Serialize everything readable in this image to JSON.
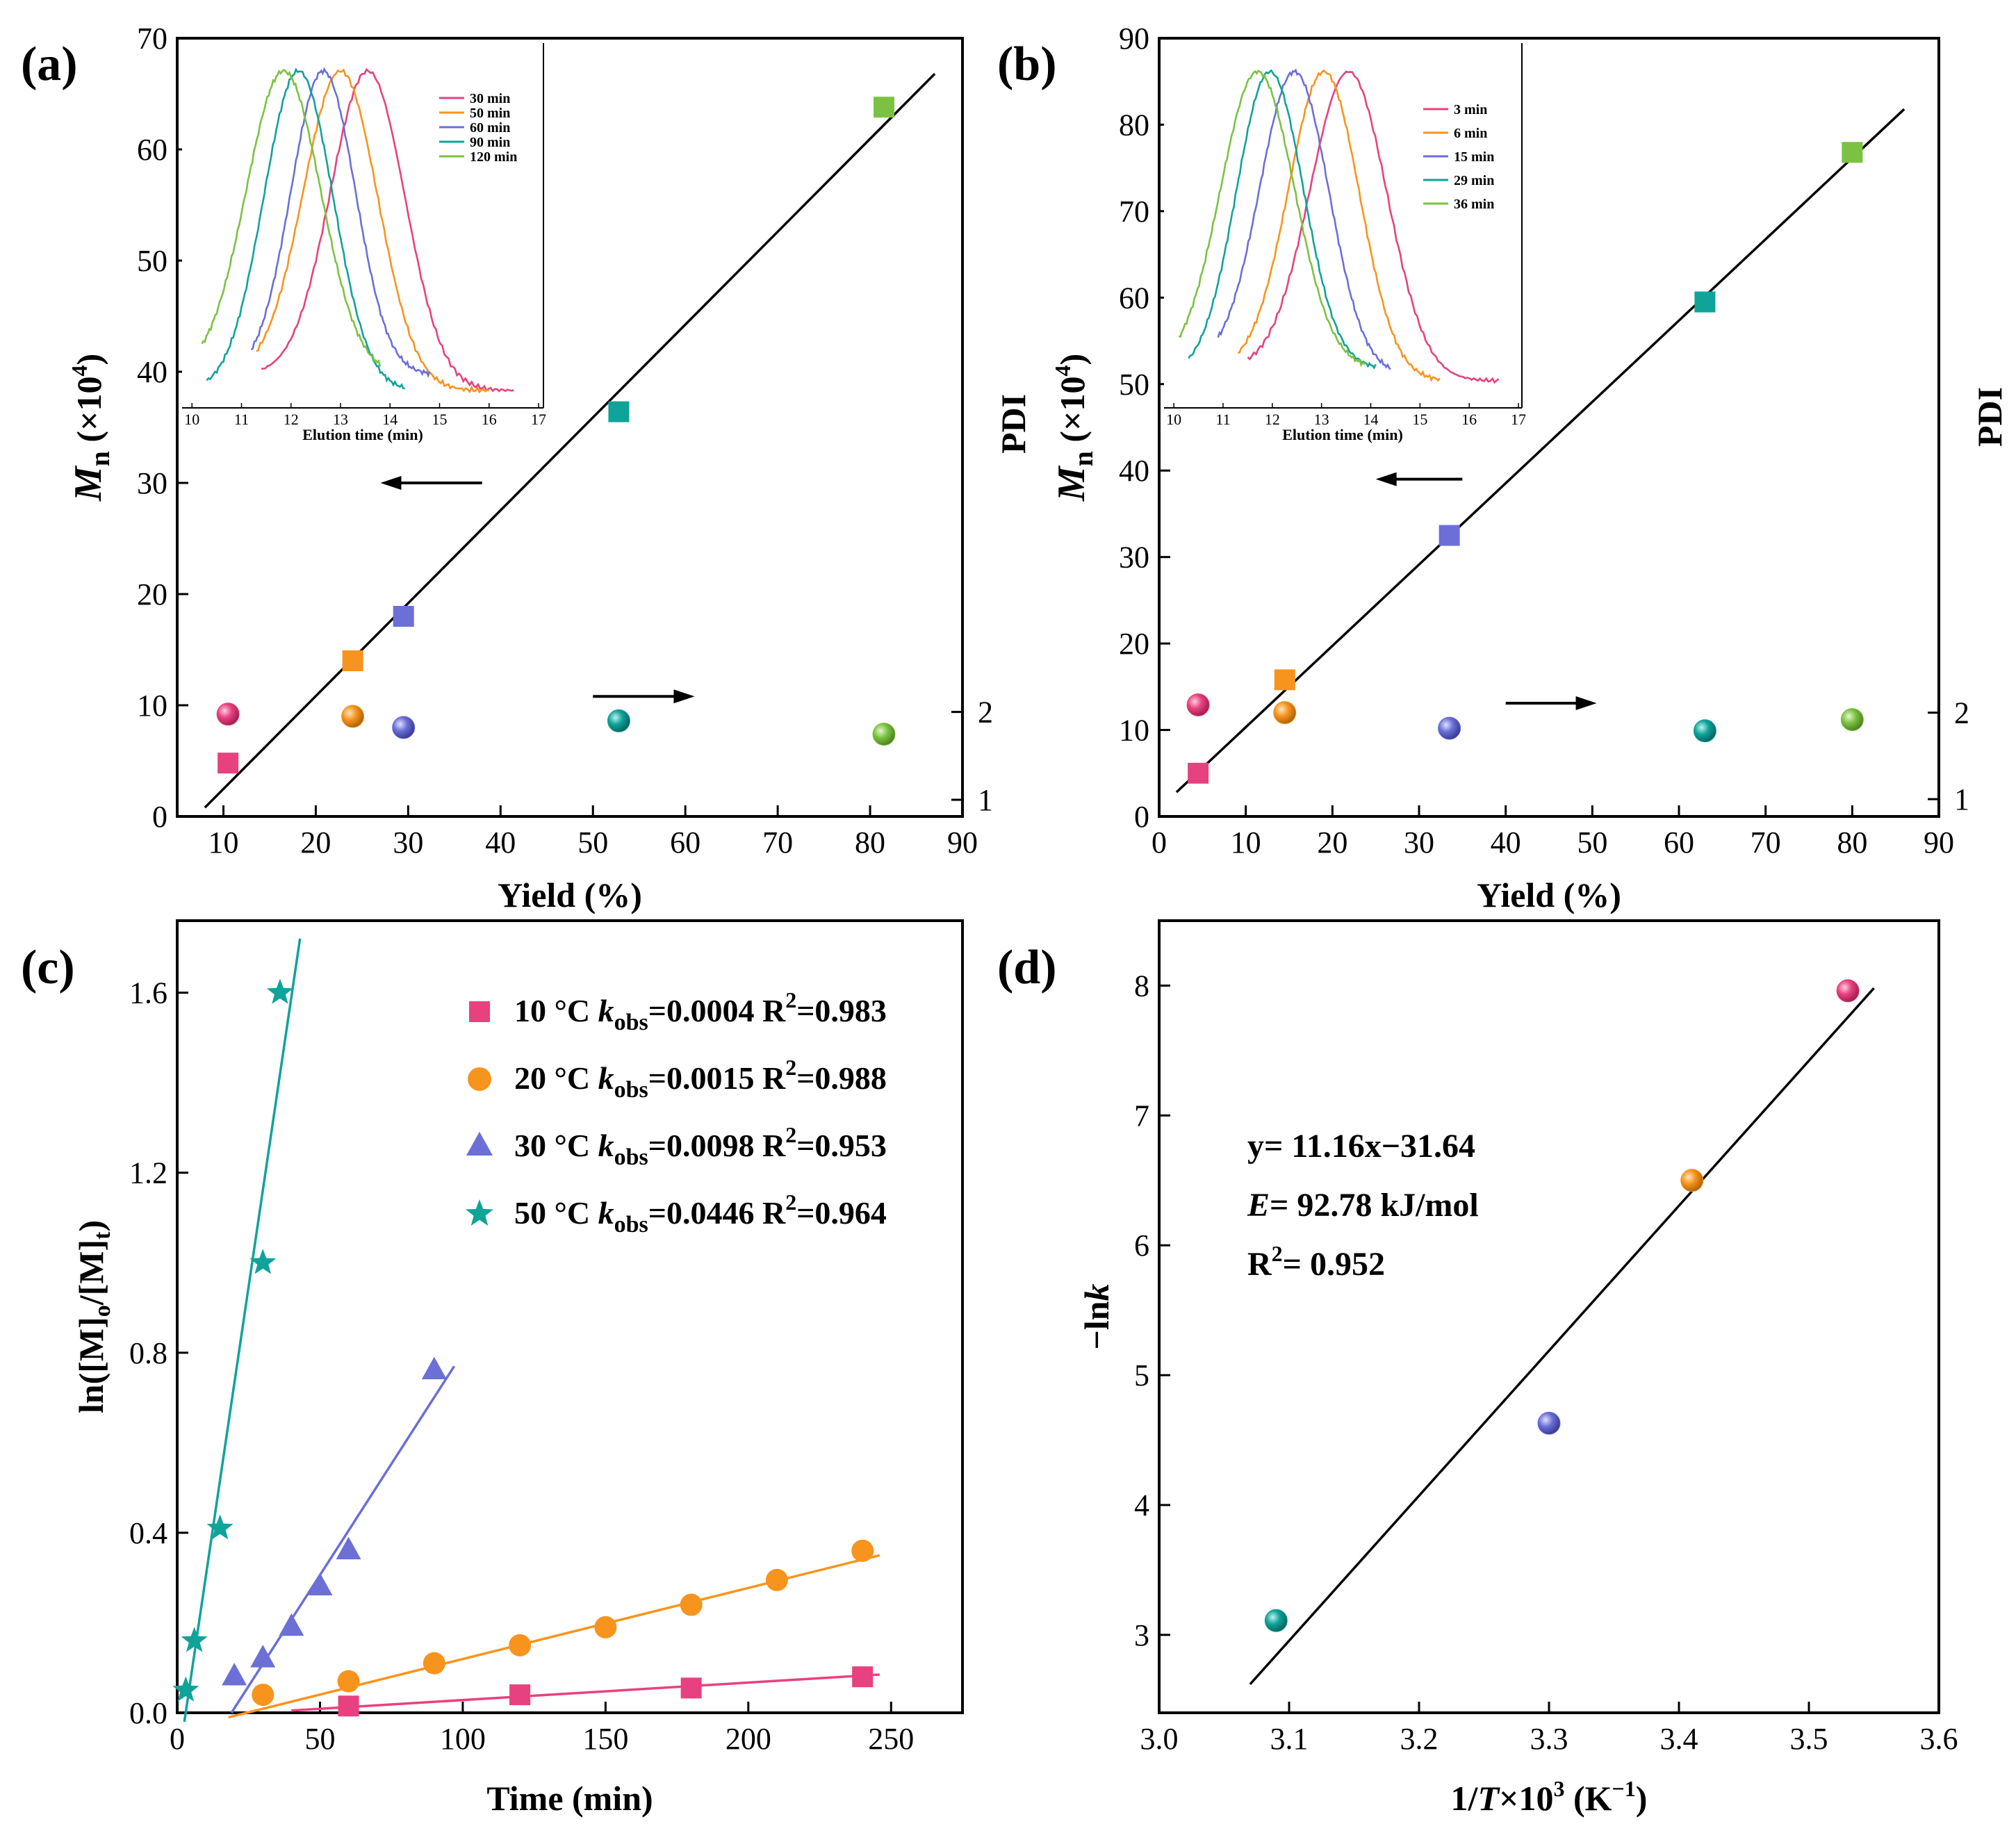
{
  "colors": {
    "pink": "#E8417F",
    "orange": "#F7941D",
    "purple": "#6B6FD6",
    "teal": "#0FA39A",
    "green": "#7CC242",
    "black": "#000000"
  },
  "chart_data": [
    {
      "id": "a",
      "panel_label": "(a)",
      "type": "scatter",
      "xlabel": "Yield (%)",
      "ylabel_left": "Mn (×10⁴)",
      "ylabel_right": "PDI",
      "xlim": [
        5,
        90
      ],
      "ylim": [
        0,
        70
      ],
      "x_ticks": [
        "10",
        "20",
        "30",
        "40",
        "50",
        "60",
        "70",
        "80",
        "90"
      ],
      "y_ticks": [
        "0",
        "10",
        "20",
        "30",
        "40",
        "50",
        "60",
        "70"
      ],
      "pdi_ticks": [
        "1",
        "2"
      ],
      "pdi_axis_map": {
        "pdi1_mn": 1.5,
        "pdi2_mn": 9.4
      },
      "series": [
        {
          "name": "Mn",
          "marker": "square",
          "x": [
            10.5,
            24,
            29.5,
            52.8,
            81.5
          ],
          "y": [
            4.8,
            14,
            18,
            36.4,
            63.8
          ],
          "colors": [
            "pink",
            "orange",
            "purple",
            "teal",
            "green"
          ]
        },
        {
          "name": "PDI",
          "marker": "sphere",
          "x": [
            10.5,
            24,
            29.5,
            52.8,
            81.5
          ],
          "y_mn_units": [
            9.2,
            9.0,
            8.0,
            8.6,
            7.4
          ],
          "colors": [
            "pink",
            "orange",
            "purple",
            "teal",
            "green"
          ]
        }
      ],
      "fit_line": {
        "x": [
          8,
          87
        ],
        "y": [
          0.8,
          66.8
        ]
      },
      "arrows": [
        {
          "direction": "left",
          "x_from": 38,
          "x_to": 27,
          "y": 30
        },
        {
          "direction": "right",
          "x_from": 50,
          "x_to": 61,
          "y": 10.8
        }
      ],
      "inset": {
        "type": "line",
        "xlabel": "Elution time (min)",
        "x_ticks": [
          "10",
          "11",
          "12",
          "13",
          "14",
          "15",
          "16",
          "17"
        ],
        "xlim": [
          9.8,
          17
        ],
        "series": [
          {
            "name": "30 min",
            "color": "pink",
            "peak": 13.55,
            "sigma": 0.75,
            "start": 11.4,
            "end": 16.5,
            "base_left": 0.05,
            "base_right": 0.0
          },
          {
            "name": "50 min",
            "color": "orange",
            "peak": 13.0,
            "sigma": 0.75,
            "start": 11.3,
            "end": 16.0,
            "base_left": 0.05,
            "base_right": 0.0
          },
          {
            "name": "60 min",
            "color": "purple",
            "peak": 12.65,
            "sigma": 0.65,
            "start": 11.2,
            "end": 14.8,
            "base_left": 0.05,
            "base_right": 0.05
          },
          {
            "name": "90 min",
            "color": "teal",
            "peak": 12.15,
            "sigma": 0.7,
            "start": 10.3,
            "end": 14.3,
            "base_left": 0.0,
            "base_right": 0.0
          },
          {
            "name": "120 min",
            "color": "green",
            "peak": 11.85,
            "sigma": 0.75,
            "start": 10.2,
            "end": 13.8,
            "base_left": 0.06,
            "base_right": 0.05
          }
        ]
      }
    },
    {
      "id": "b",
      "panel_label": "(b)",
      "type": "scatter",
      "xlabel": "Yield (%)",
      "ylabel_left": "Mn (×10⁴)",
      "ylabel_right": "PDI",
      "xlim": [
        0,
        90
      ],
      "ylim": [
        0,
        90
      ],
      "x_ticks": [
        "0",
        "10",
        "20",
        "30",
        "40",
        "50",
        "60",
        "70",
        "80",
        "90"
      ],
      "y_ticks": [
        "0",
        "10",
        "20",
        "30",
        "40",
        "50",
        "60",
        "70",
        "80",
        "90"
      ],
      "pdi_ticks": [
        "1",
        "2"
      ],
      "pdi_axis_map": {
        "pdi1_mn": 2.0,
        "pdi2_mn": 12.0
      },
      "series": [
        {
          "name": "Mn",
          "marker": "square",
          "x": [
            4.5,
            14.5,
            33.5,
            63,
            80
          ],
          "y": [
            5,
            15.8,
            32.5,
            59.5,
            76.8
          ],
          "colors": [
            "pink",
            "orange",
            "purple",
            "teal",
            "green"
          ]
        },
        {
          "name": "PDI",
          "marker": "sphere",
          "x": [
            4.5,
            14.5,
            33.5,
            63,
            80
          ],
          "y_mn_units": [
            12.9,
            12.0,
            10.2,
            9.9,
            11.2
          ],
          "colors": [
            "pink",
            "orange",
            "purple",
            "teal",
            "green"
          ]
        }
      ],
      "fit_line": {
        "x": [
          2,
          86
        ],
        "y": [
          2.8,
          81.8
        ]
      },
      "arrows": [
        {
          "direction": "left",
          "x_from": 35,
          "x_to": 25,
          "y": 39
        },
        {
          "direction": "right",
          "x_from": 40,
          "x_to": 50.5,
          "y": 13.1
        }
      ],
      "inset": {
        "type": "line",
        "xlabel": "Elution time (min)",
        "x_ticks": [
          "10",
          "11",
          "12",
          "13",
          "14",
          "15",
          "16",
          "17"
        ],
        "xlim": [
          9.8,
          17
        ],
        "series": [
          {
            "name": "3 min",
            "color": "pink",
            "peak": 13.55,
            "sigma": 0.78,
            "start": 11.5,
            "end": 16.6,
            "base_left": 0.04,
            "base_right": 0.0
          },
          {
            "name": "6 min",
            "color": "orange",
            "peak": 13.05,
            "sigma": 0.72,
            "start": 11.3,
            "end": 15.4,
            "base_left": 0.04,
            "base_right": 0.0
          },
          {
            "name": "15 min",
            "color": "purple",
            "peak": 12.45,
            "sigma": 0.7,
            "start": 10.9,
            "end": 14.4,
            "base_left": 0.06,
            "base_right": 0.02
          },
          {
            "name": "29 min",
            "color": "teal",
            "peak": 11.95,
            "sigma": 0.68,
            "start": 10.3,
            "end": 14.1,
            "base_left": 0.02,
            "base_right": 0.04
          },
          {
            "name": "36 min",
            "color": "green",
            "peak": 11.7,
            "sigma": 0.75,
            "start": 10.1,
            "end": 13.9,
            "base_left": 0.04,
            "base_right": 0.04
          }
        ]
      }
    },
    {
      "id": "c",
      "panel_label": "(c)",
      "type": "scatter",
      "xlabel": "Time (min)",
      "ylabel": "ln([M]o/[M]t)",
      "xlim": [
        0,
        275
      ],
      "ylim": [
        0,
        1.76
      ],
      "x_ticks": [
        "0",
        "50",
        "100",
        "150",
        "200",
        "250"
      ],
      "y_ticks": [
        "0.0",
        "0.4",
        "0.8",
        "1.2",
        "1.6"
      ],
      "series": [
        {
          "name": "10 °C",
          "k_label": "kobs=0.0004",
          "r2_label": "R2=0.983",
          "marker": "square",
          "color": "pink",
          "x": [
            60,
            120,
            180,
            240
          ],
          "y": [
            0.015,
            0.04,
            0.055,
            0.08
          ],
          "fit": {
            "x": [
              40,
              246
            ],
            "y": [
              0.005,
              0.085
            ]
          }
        },
        {
          "name": "20 °C",
          "k_label": "kobs=0.0015",
          "r2_label": "R2=0.988",
          "marker": "circle",
          "color": "orange",
          "x": [
            30,
            60,
            90,
            120,
            150,
            180,
            210,
            240
          ],
          "y": [
            0.04,
            0.07,
            0.11,
            0.15,
            0.19,
            0.24,
            0.295,
            0.36
          ],
          "fit": {
            "x": [
              18,
              246
            ],
            "y": [
              -0.01,
              0.35
            ]
          }
        },
        {
          "name": "30 °C",
          "k_label": "kobs=0.0098",
          "r2_label": "R2=0.953",
          "marker": "triangle",
          "color": "purple",
          "x": [
            20,
            30,
            40,
            50,
            60,
            90
          ],
          "y": [
            0.08,
            0.12,
            0.19,
            0.28,
            0.36,
            0.76
          ],
          "fit": {
            "x": [
              19,
              97
            ],
            "y": [
              0.0,
              0.77
            ]
          }
        },
        {
          "name": "50 °C",
          "k_label": "kobs=0.0446",
          "r2_label": "R2=0.964",
          "marker": "star",
          "color": "teal",
          "x": [
            3,
            6,
            15,
            30,
            36
          ],
          "y": [
            0.05,
            0.16,
            0.41,
            1.0,
            1.6
          ],
          "fit": {
            "x": [
              2.5,
              43
            ],
            "y": [
              -0.02,
              1.72
            ]
          }
        }
      ]
    },
    {
      "id": "d",
      "panel_label": "(d)",
      "type": "scatter",
      "xlabel": "1/T×10³ (K⁻¹)",
      "ylabel": "−lnk",
      "xlim": [
        3.0,
        3.6
      ],
      "ylim": [
        2.4,
        8.5
      ],
      "x_ticks": [
        "3.0",
        "3.1",
        "3.2",
        "3.3",
        "3.4",
        "3.5",
        "3.6"
      ],
      "y_ticks": [
        "3",
        "4",
        "5",
        "6",
        "7",
        "8"
      ],
      "series": [
        {
          "name": "data",
          "marker": "sphere",
          "x": [
            3.09,
            3.3,
            3.41,
            3.53
          ],
          "y": [
            3.11,
            4.63,
            6.5,
            7.96
          ],
          "colors": [
            "teal",
            "purple",
            "orange",
            "pink"
          ]
        }
      ],
      "fit_line": {
        "x": [
          3.07,
          3.55
        ],
        "y": [
          2.62,
          7.98
        ]
      },
      "annotations": [
        "y= 11.16x−31.64",
        "E= 92.78 kJ/mol",
        "R2= 0.952"
      ]
    }
  ]
}
